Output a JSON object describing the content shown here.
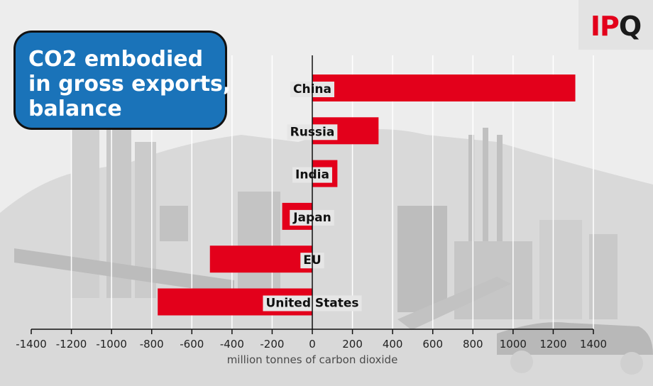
{
  "title_lines": [
    "CO2 embodied",
    "in gross exports,",
    "balance"
  ],
  "logo": {
    "part1": "IP",
    "part2": "Q"
  },
  "colors": {
    "bar": "#e3001b",
    "title_bg": "#1a73b9",
    "grid": "#ffffff",
    "axis": "#111111"
  },
  "chart_data": {
    "type": "bar",
    "orientation": "horizontal",
    "title": "CO2 embodied in gross exports, balance",
    "xlabel": "million tonnes of carbon dioxide",
    "ylabel": "",
    "categories": [
      "China",
      "Russia",
      "India",
      "Japan",
      "EU",
      "United States"
    ],
    "values": [
      1310,
      330,
      125,
      -150,
      -510,
      -770
    ],
    "xlim": [
      -1400,
      1400
    ],
    "xticks": [
      -1400,
      -1200,
      -1000,
      -800,
      -600,
      -400,
      -200,
      0,
      200,
      400,
      600,
      800,
      1000,
      1200,
      1400
    ],
    "grid": true,
    "legend": "none"
  }
}
